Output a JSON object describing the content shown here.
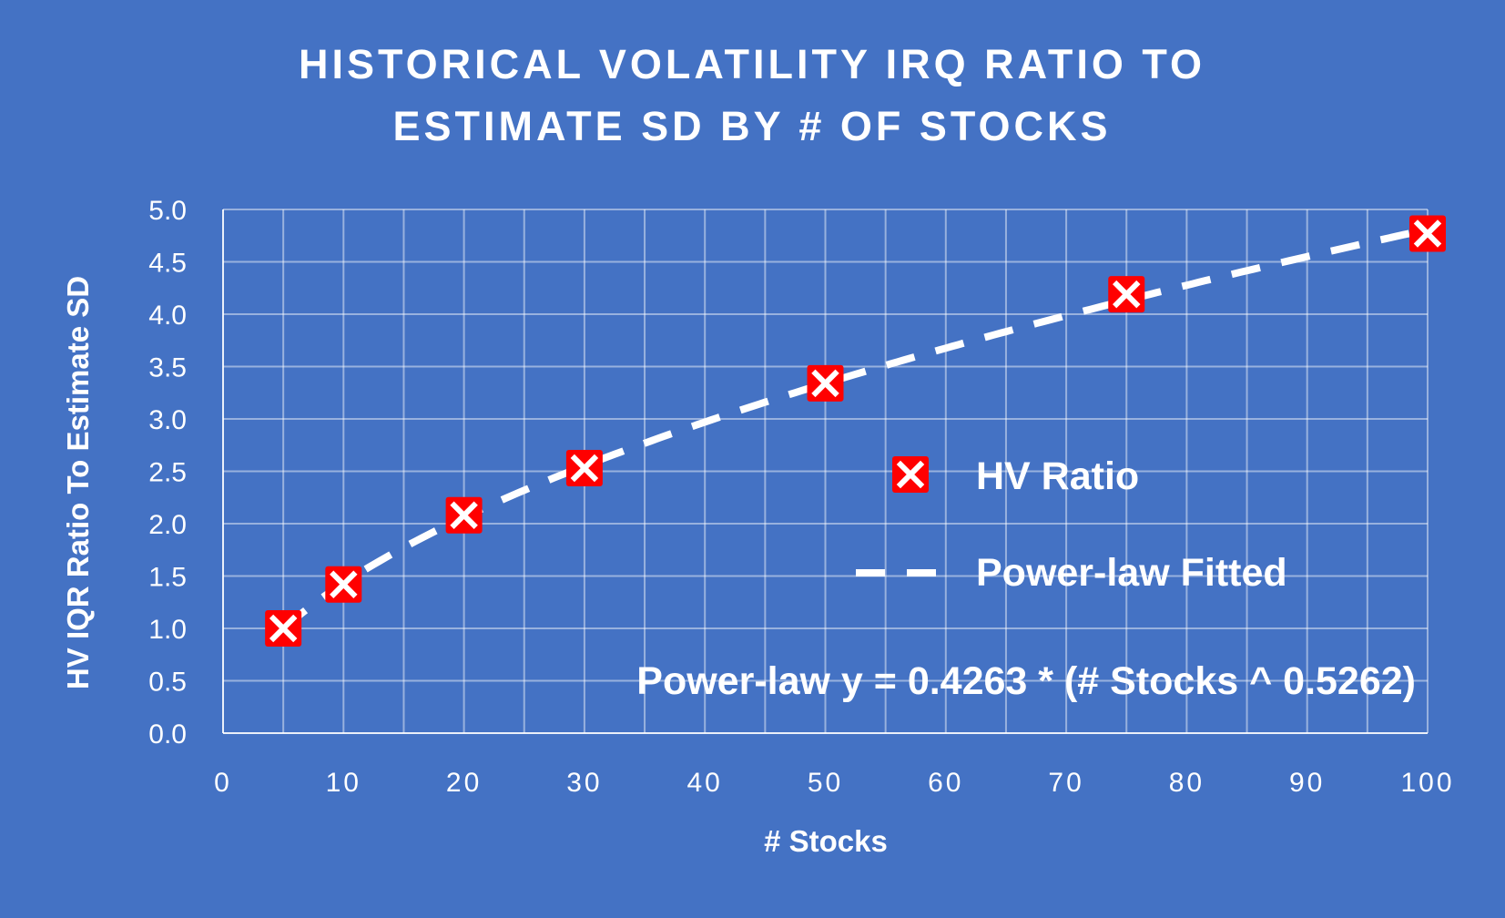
{
  "chart_data": {
    "type": "scatter",
    "title_lines": [
      "HISTORICAL VOLATILITY IRQ RATIO TO",
      "ESTIMATE SD BY # OF STOCKS"
    ],
    "xlabel": "# Stocks",
    "ylabel": "HV IQR Ratio To Estimate SD",
    "xlim": [
      0,
      100
    ],
    "ylim": [
      0,
      5
    ],
    "x_ticks": [
      0,
      10,
      20,
      30,
      40,
      50,
      60,
      70,
      80,
      90,
      100
    ],
    "y_ticks": [
      0.0,
      0.5,
      1.0,
      1.5,
      2.0,
      2.5,
      3.0,
      3.5,
      4.0,
      4.5,
      5.0
    ],
    "x_tick_labels": [
      "0",
      "10",
      "20",
      "30",
      "40",
      "50",
      "60",
      "70",
      "80",
      "90",
      "100"
    ],
    "y_tick_labels": [
      "0.0",
      "0.5",
      "1.0",
      "1.5",
      "2.0",
      "2.5",
      "3.0",
      "3.5",
      "4.0",
      "4.5",
      "5.0"
    ],
    "x_minor_step": 5,
    "y_minor_step": 0.5,
    "grid": true,
    "legend_position": "center-right",
    "series": [
      {
        "name": "HV Ratio",
        "kind": "markers",
        "marker": "x-box",
        "color": "#FF0000",
        "x": [
          5,
          10,
          20,
          30,
          50,
          75,
          100
        ],
        "y": [
          1.0,
          1.42,
          2.08,
          2.53,
          3.34,
          4.19,
          4.77
        ]
      },
      {
        "name": "Power-law Fitted",
        "kind": "dashed-line",
        "color": "#FFFFFF",
        "coefficient": 0.4263,
        "exponent": 0.5262,
        "x_start": 5,
        "x_end": 100
      }
    ],
    "annotation": "Power-law y = 0.4263 * (# Stocks ^ 0.5262)"
  }
}
